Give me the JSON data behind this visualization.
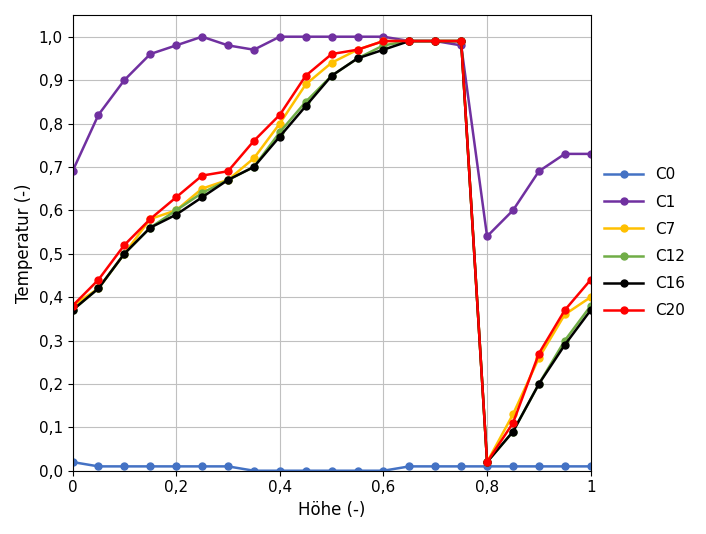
{
  "xlabel": "Höhe (-)",
  "ylabel": "Temperatur (-)",
  "series": [
    {
      "label": "C0",
      "color": "#4472C4",
      "x": [
        0.0,
        0.05,
        0.1,
        0.15,
        0.2,
        0.25,
        0.3,
        0.35,
        0.4,
        0.45,
        0.5,
        0.55,
        0.6,
        0.65,
        0.7,
        0.75,
        0.8,
        0.85,
        0.9,
        0.95,
        1.0
      ],
      "y": [
        0.02,
        0.01,
        0.01,
        0.01,
        0.01,
        0.01,
        0.01,
        0.0,
        0.0,
        0.0,
        0.0,
        0.0,
        0.0,
        0.01,
        0.01,
        0.01,
        0.01,
        0.01,
        0.01,
        0.01,
        0.01
      ]
    },
    {
      "label": "C1",
      "color": "#7030A0",
      "x": [
        0.0,
        0.05,
        0.1,
        0.15,
        0.2,
        0.25,
        0.3,
        0.35,
        0.4,
        0.45,
        0.5,
        0.55,
        0.6,
        0.65,
        0.7,
        0.75,
        0.8,
        0.85,
        0.9,
        0.95,
        1.0
      ],
      "y": [
        0.69,
        0.82,
        0.9,
        0.96,
        0.98,
        1.0,
        0.98,
        0.97,
        1.0,
        1.0,
        1.0,
        1.0,
        1.0,
        0.99,
        0.99,
        0.98,
        0.54,
        0.6,
        0.69,
        0.73,
        0.73
      ]
    },
    {
      "label": "C7",
      "color": "#FFC000",
      "x": [
        0.0,
        0.05,
        0.1,
        0.15,
        0.2,
        0.25,
        0.3,
        0.35,
        0.4,
        0.45,
        0.5,
        0.55,
        0.6,
        0.65,
        0.7,
        0.75,
        0.8,
        0.85,
        0.9,
        0.95,
        1.0
      ],
      "y": [
        0.38,
        0.42,
        0.5,
        0.58,
        0.6,
        0.65,
        0.67,
        0.72,
        0.8,
        0.89,
        0.94,
        0.97,
        0.99,
        0.99,
        0.99,
        0.99,
        0.02,
        0.13,
        0.26,
        0.36,
        0.4
      ]
    },
    {
      "label": "C12",
      "color": "#70AD47",
      "x": [
        0.0,
        0.05,
        0.1,
        0.15,
        0.2,
        0.25,
        0.3,
        0.35,
        0.4,
        0.45,
        0.5,
        0.55,
        0.6,
        0.65,
        0.7,
        0.75,
        0.8,
        0.85,
        0.9,
        0.95,
        1.0
      ],
      "y": [
        0.37,
        0.42,
        0.5,
        0.56,
        0.6,
        0.64,
        0.67,
        0.7,
        0.78,
        0.85,
        0.91,
        0.95,
        0.98,
        0.99,
        0.99,
        0.99,
        0.02,
        0.09,
        0.2,
        0.3,
        0.38
      ]
    },
    {
      "label": "C16",
      "color": "#000000",
      "x": [
        0.0,
        0.05,
        0.1,
        0.15,
        0.2,
        0.25,
        0.3,
        0.35,
        0.4,
        0.45,
        0.5,
        0.55,
        0.6,
        0.65,
        0.7,
        0.75,
        0.8,
        0.85,
        0.9,
        0.95,
        1.0
      ],
      "y": [
        0.37,
        0.42,
        0.5,
        0.56,
        0.59,
        0.63,
        0.67,
        0.7,
        0.77,
        0.84,
        0.91,
        0.95,
        0.97,
        0.99,
        0.99,
        0.99,
        0.02,
        0.09,
        0.2,
        0.29,
        0.37
      ]
    },
    {
      "label": "C20",
      "color": "#FF0000",
      "x": [
        0.0,
        0.05,
        0.1,
        0.15,
        0.2,
        0.25,
        0.3,
        0.35,
        0.4,
        0.45,
        0.5,
        0.55,
        0.6,
        0.65,
        0.7,
        0.75,
        0.8,
        0.85,
        0.9,
        0.95,
        1.0
      ],
      "y": [
        0.38,
        0.44,
        0.52,
        0.58,
        0.63,
        0.68,
        0.69,
        0.76,
        0.82,
        0.91,
        0.96,
        0.97,
        0.99,
        0.99,
        0.99,
        0.99,
        0.02,
        0.11,
        0.27,
        0.37,
        0.44
      ]
    }
  ],
  "xlim": [
    0,
    1
  ],
  "ylim": [
    0,
    1.05
  ],
  "grid": true,
  "marker": "o",
  "markersize": 5,
  "linewidth": 1.8,
  "background_color": "#ffffff",
  "tick_label_fontsize": 11,
  "axis_label_fontsize": 12
}
